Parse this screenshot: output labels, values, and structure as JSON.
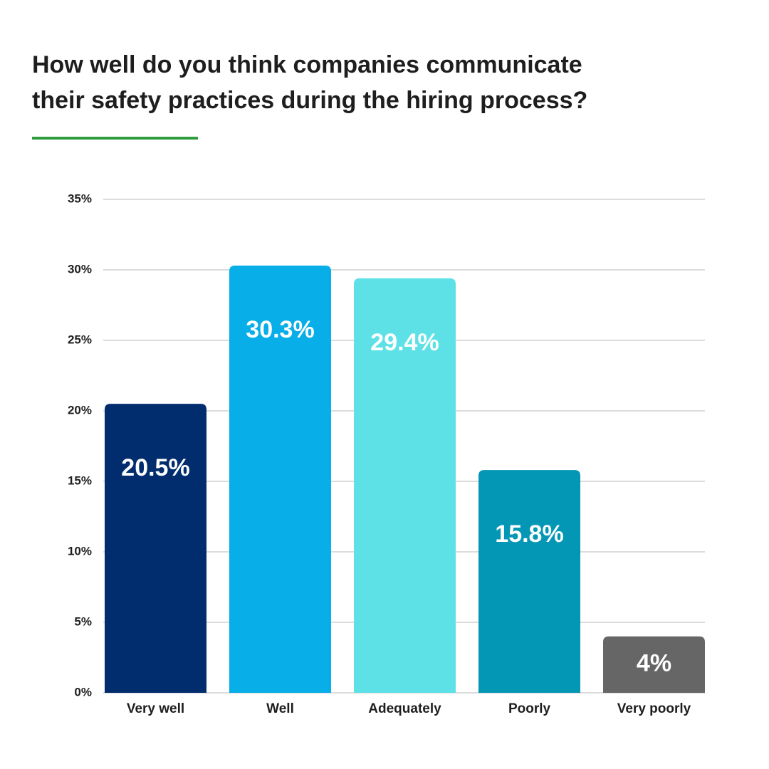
{
  "chart_data": {
    "type": "bar",
    "title": "How well do you think companies communicate their safety practices during the hiring process?",
    "categories": [
      "Very well",
      "Well",
      "Adequately",
      "Poorly",
      "Very poorly"
    ],
    "values": [
      20.5,
      30.3,
      29.4,
      15.8,
      4
    ],
    "value_labels": [
      "20.5%",
      "30.3%",
      "29.4%",
      "15.8%",
      "4%"
    ],
    "colors": [
      "#012d6e",
      "#07aee8",
      "#5ee1e6",
      "#0497b5",
      "#666666"
    ],
    "ylim": [
      0,
      35
    ],
    "yticks": [
      {
        "value": 0,
        "label": "0%"
      },
      {
        "value": 5,
        "label": "5%"
      },
      {
        "value": 10,
        "label": "10%"
      },
      {
        "value": 15,
        "label": "15%"
      },
      {
        "value": 20,
        "label": "20%"
      },
      {
        "value": 25,
        "label": "25%"
      },
      {
        "value": 30,
        "label": "30%"
      },
      {
        "value": 35,
        "label": "35%"
      }
    ],
    "grid": true
  }
}
